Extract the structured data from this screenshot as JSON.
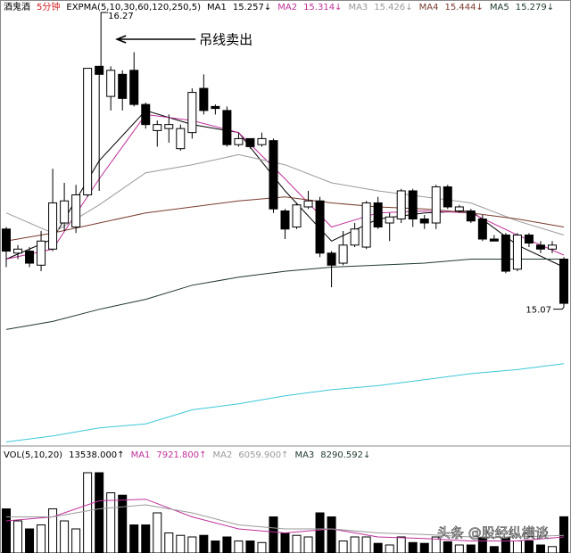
{
  "chart_data": [
    {
      "type": "candlestick",
      "title": "酒鬼酒",
      "subtitle": "5分钟",
      "indicator": "EXPMA(5,10,30,60,120,250,5)",
      "categories": [
        null,
        null,
        null,
        null,
        null,
        null,
        null,
        null,
        null,
        null,
        null,
        null,
        null,
        null,
        null,
        null,
        null,
        null,
        null,
        null,
        null,
        null,
        null,
        null,
        null,
        null,
        null,
        null,
        null,
        null,
        null,
        null,
        null,
        null,
        null,
        null,
        null,
        null,
        null,
        null,
        null,
        null,
        null,
        null,
        null,
        null,
        null,
        null,
        null
      ],
      "open": [
        15.46,
        15.34,
        15.35,
        15.28,
        15.36,
        15.49,
        15.47,
        15.63,
        16.27,
        16.12,
        16.23,
        16.25,
        16.08,
        15.95,
        15.96,
        15.86,
        15.94,
        16.16,
        16.07,
        16.05,
        15.88,
        15.91,
        15.88,
        15.9,
        15.55,
        15.47,
        15.57,
        15.6,
        15.34,
        15.29,
        15.38,
        15.37,
        15.59,
        15.49,
        15.51,
        15.65,
        15.51,
        15.49,
        15.67,
        15.55,
        15.55,
        15.51,
        15.41,
        15.43,
        15.26,
        15.43,
        15.38,
        15.36,
        15.31
      ],
      "high": [
        15.47,
        15.38,
        15.37,
        15.45,
        15.76,
        15.69,
        15.68,
        16.26,
        16.27,
        16.27,
        16.25,
        16.34,
        16.09,
        16.0,
        16.03,
        15.98,
        16.16,
        16.23,
        16.08,
        16.07,
        15.94,
        15.91,
        15.94,
        15.91,
        15.56,
        15.59,
        15.65,
        15.62,
        15.35,
        15.45,
        15.49,
        15.6,
        15.62,
        15.54,
        15.66,
        15.66,
        15.53,
        15.68,
        15.68,
        15.58,
        15.56,
        15.53,
        15.43,
        15.44,
        15.44,
        15.44,
        15.4,
        15.4,
        15.32
      ],
      "low": [
        15.27,
        15.31,
        15.27,
        15.25,
        15.35,
        15.45,
        15.44,
        15.62,
        15.65,
        16.05,
        16.05,
        16.07,
        15.96,
        15.87,
        15.89,
        15.85,
        15.91,
        16.03,
        16.03,
        15.87,
        15.87,
        15.86,
        15.87,
        15.54,
        15.41,
        15.46,
        15.56,
        15.32,
        15.17,
        15.28,
        15.37,
        15.36,
        15.46,
        15.4,
        15.49,
        15.47,
        15.46,
        15.46,
        15.56,
        15.54,
        15.49,
        15.4,
        15.4,
        15.24,
        15.25,
        15.37,
        15.34,
        15.34,
        15.07
      ],
      "close": [
        15.35,
        15.36,
        15.29,
        15.4,
        15.59,
        15.6,
        15.63,
        16.26,
        16.23,
        16.25,
        16.11,
        16.08,
        15.98,
        15.98,
        15.98,
        15.96,
        16.14,
        16.05,
        16.06,
        15.88,
        15.91,
        15.87,
        15.91,
        15.56,
        15.46,
        15.58,
        15.6,
        15.34,
        15.28,
        15.38,
        15.46,
        15.59,
        15.47,
        15.52,
        15.65,
        15.51,
        15.49,
        15.67,
        15.57,
        15.57,
        15.5,
        15.41,
        15.4,
        15.25,
        15.43,
        15.39,
        15.36,
        15.38,
        15.09
      ],
      "up_color": "#ffffff",
      "down_color": "#000000",
      "outline_color": "#000000",
      "lines": [
        {
          "name": "MA1",
          "label": "15.257↓",
          "color": "#000000",
          "x": [
            0,
            4,
            8,
            12,
            16,
            20,
            24,
            28,
            32,
            36,
            40,
            44,
            48
          ],
          "values": [
            15.31,
            15.41,
            15.8,
            16.05,
            15.98,
            15.94,
            15.65,
            15.4,
            15.51,
            15.54,
            15.55,
            15.38,
            15.27
          ]
        },
        {
          "name": "MA2",
          "label": "15.314↓",
          "color": "#c0309a",
          "x": [
            0,
            4,
            8,
            12,
            16,
            20,
            24,
            28,
            32,
            36,
            40,
            44,
            48
          ],
          "values": [
            15.31,
            15.36,
            15.71,
            16.03,
            16.0,
            15.94,
            15.71,
            15.47,
            15.54,
            15.55,
            15.54,
            15.43,
            15.33
          ]
        },
        {
          "name": "MA3",
          "label": "15.426↓",
          "color": "#9a9a9a",
          "x": [
            0,
            4,
            8,
            12,
            16,
            20,
            24,
            28,
            32,
            36,
            40,
            44,
            48
          ],
          "values": [
            15.54,
            15.44,
            15.58,
            15.74,
            15.78,
            15.83,
            15.78,
            15.69,
            15.65,
            15.62,
            15.59,
            15.5,
            15.43
          ]
        },
        {
          "name": "MA4",
          "label": "15.444↓",
          "color": "#7a3b2e",
          "x": [
            0,
            4,
            8,
            12,
            16,
            20,
            24,
            28,
            32,
            36,
            40,
            44,
            48
          ],
          "values": [
            15.4,
            15.44,
            15.49,
            15.54,
            15.57,
            15.6,
            15.62,
            15.59,
            15.57,
            15.56,
            15.54,
            15.51,
            15.47
          ]
        },
        {
          "name": "MA5",
          "label": "15.279↓",
          "color": "#1e3a2a",
          "x": [
            0,
            4,
            8,
            12,
            16,
            20,
            24,
            28,
            32,
            36,
            40,
            44,
            48
          ],
          "values": [
            14.96,
            15.0,
            15.06,
            15.11,
            15.18,
            15.22,
            15.25,
            15.27,
            15.28,
            15.29,
            15.31,
            15.31,
            15.31
          ]
        },
        {
          "color": "#3cc8d8",
          "x": [
            0,
            4,
            8,
            12,
            16,
            20,
            24,
            28,
            32,
            36,
            40,
            44,
            48
          ],
          "values": [
            14.4,
            14.43,
            14.47,
            14.49,
            14.56,
            14.59,
            14.63,
            14.66,
            14.68,
            14.71,
            14.74,
            14.76,
            14.79
          ]
        }
      ],
      "annotations": [
        {
          "index": 8,
          "value": 16.27,
          "note": "吊线卖出"
        },
        {
          "index": 48,
          "value": 15.07
        }
      ],
      "ylim": [
        14.38,
        16.6
      ]
    },
    {
      "type": "bar",
      "title": "VOL(5,10,20)",
      "legend": [
        {
          "text": "13538.000↑",
          "color": "#000000"
        },
        {
          "name": "MA1",
          "text": "7921.800↑",
          "color": "#c0309a"
        },
        {
          "name": "MA2",
          "text": "6059.900↑",
          "color": "#9a9a9a"
        },
        {
          "name": "MA3",
          "text": "8290.592↓",
          "color": "#1e3a2a"
        }
      ],
      "categories": [
        null,
        null,
        null,
        null,
        null,
        null,
        null,
        null,
        null,
        null,
        null,
        null,
        null,
        null,
        null,
        null,
        null,
        null,
        null,
        null,
        null,
        null,
        null,
        null,
        null,
        null,
        null,
        null,
        null,
        null,
        null,
        null,
        null,
        null,
        null,
        null,
        null,
        null,
        null,
        null,
        null,
        null,
        null,
        null,
        null,
        null,
        null,
        null,
        null
      ],
      "values": [
        16500,
        12000,
        9000,
        10500,
        16500,
        12000,
        9000,
        30000,
        30000,
        22500,
        21600,
        10500,
        10500,
        15000,
        7500,
        6600,
        6000,
        6600,
        4500,
        6000,
        4500,
        4500,
        3900,
        13500,
        7500,
        6600,
        6000,
        15000,
        13500,
        4500,
        6000,
        6000,
        3600,
        3000,
        6000,
        3900,
        3600,
        6000,
        4200,
        3000,
        3000,
        6000,
        2400,
        6000,
        4500,
        4500,
        3000,
        2400,
        13538
      ],
      "lines": [
        {
          "color": "#c0309a",
          "x": [
            0,
            4,
            8,
            12,
            16,
            20,
            24,
            28,
            32,
            36,
            40,
            44,
            48
          ],
          "values": [
            12000,
            13500,
            19500,
            20100,
            13500,
            9000,
            7500,
            9000,
            6000,
            5400,
            4500,
            4500,
            6000
          ]
        },
        {
          "color": "#9a9a9a",
          "x": [
            0,
            4,
            8,
            12,
            16,
            20,
            24,
            28,
            32,
            36,
            40,
            44,
            48
          ],
          "values": [
            13500,
            13500,
            16500,
            18000,
            15000,
            10500,
            9000,
            9000,
            7500,
            6900,
            6000,
            6000,
            6600
          ]
        }
      ],
      "ylim": [
        0,
        34000
      ]
    }
  ],
  "watermark": "头条 @股经纵横谈"
}
